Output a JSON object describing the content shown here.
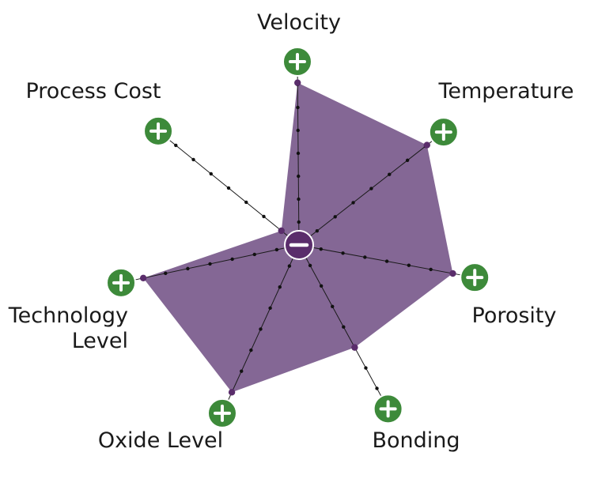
{
  "chart_data": {
    "type": "radar",
    "axes": [
      {
        "label": [
          "Velocity"
        ],
        "value": 0.885
      },
      {
        "label": [
          "Temperature"
        ],
        "value": 0.885
      },
      {
        "label": [
          "Porosity"
        ],
        "value": 0.875
      },
      {
        "label": [
          "Bonding"
        ],
        "value": 0.625
      },
      {
        "label": [
          "Oxide Level"
        ],
        "value": 0.875
      },
      {
        "label": [
          "Technology",
          "Level"
        ],
        "value": 0.875
      },
      {
        "label": [
          "Process Cost"
        ],
        "value": 0.125
      }
    ],
    "scale_ticks": 8,
    "range": [
      0,
      1
    ],
    "center_symbol": "minus-icon",
    "end_symbol": "plus-icon",
    "colors": {
      "fill": "#7a5a8c",
      "center": "#5a2d6b",
      "plus": "#3d8a3a",
      "spoke": "#1a1a1a",
      "marker": "#5a2d6b"
    }
  }
}
